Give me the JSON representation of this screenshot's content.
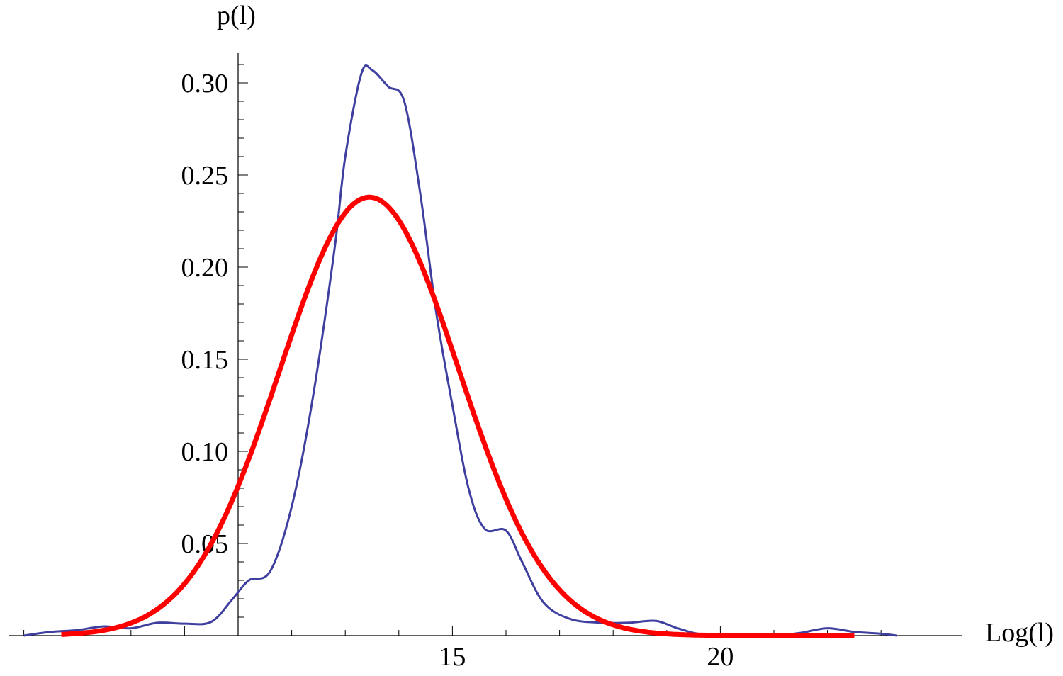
{
  "chart_data": {
    "type": "line",
    "xlabel": "Log(l)",
    "ylabel": "p(l)",
    "xlim": [
      6.9,
      23.5
    ],
    "ylim": [
      0,
      0.31
    ],
    "x_origin": 11,
    "x_ticks": [
      15,
      20
    ],
    "y_ticks": [
      "0.05",
      "0.10",
      "0.15",
      "0.20",
      "0.25",
      "0.30"
    ],
    "grid": false,
    "series": [
      {
        "color": "#3f3f9f",
        "stroke_width": 3,
        "points": [
          [
            7.0,
            0.0
          ],
          [
            7.5,
            0.002
          ],
          [
            8.0,
            0.003
          ],
          [
            8.5,
            0.005
          ],
          [
            9.0,
            0.004
          ],
          [
            9.5,
            0.007
          ],
          [
            10.0,
            0.0065
          ],
          [
            10.5,
            0.0075
          ],
          [
            10.9,
            0.02
          ],
          [
            11.2,
            0.03
          ],
          [
            11.6,
            0.035
          ],
          [
            12.0,
            0.07
          ],
          [
            12.4,
            0.13
          ],
          [
            12.8,
            0.21
          ],
          [
            13.0,
            0.26
          ],
          [
            13.3,
            0.305
          ],
          [
            13.5,
            0.307
          ],
          [
            13.8,
            0.298
          ],
          [
            14.1,
            0.29
          ],
          [
            14.4,
            0.24
          ],
          [
            14.7,
            0.175
          ],
          [
            15.0,
            0.125
          ],
          [
            15.3,
            0.08
          ],
          [
            15.6,
            0.058
          ],
          [
            16.0,
            0.057
          ],
          [
            16.3,
            0.04
          ],
          [
            16.7,
            0.018
          ],
          [
            17.2,
            0.009
          ],
          [
            17.8,
            0.007
          ],
          [
            18.3,
            0.007
          ],
          [
            18.8,
            0.008
          ],
          [
            19.2,
            0.004
          ],
          [
            19.7,
            0.0005
          ],
          [
            20.5,
            0.0
          ],
          [
            21.0,
            0.0
          ],
          [
            21.5,
            0.0015
          ],
          [
            22.0,
            0.004
          ],
          [
            22.5,
            0.002
          ],
          [
            23.0,
            0.001
          ],
          [
            23.3,
            0.0
          ]
        ]
      },
      {
        "color": "#ff0000",
        "stroke_width": 7,
        "mean": 13.45,
        "sigma": 1.67,
        "peak": 0.238,
        "x_range": [
          7.7,
          22.5
        ]
      }
    ]
  }
}
